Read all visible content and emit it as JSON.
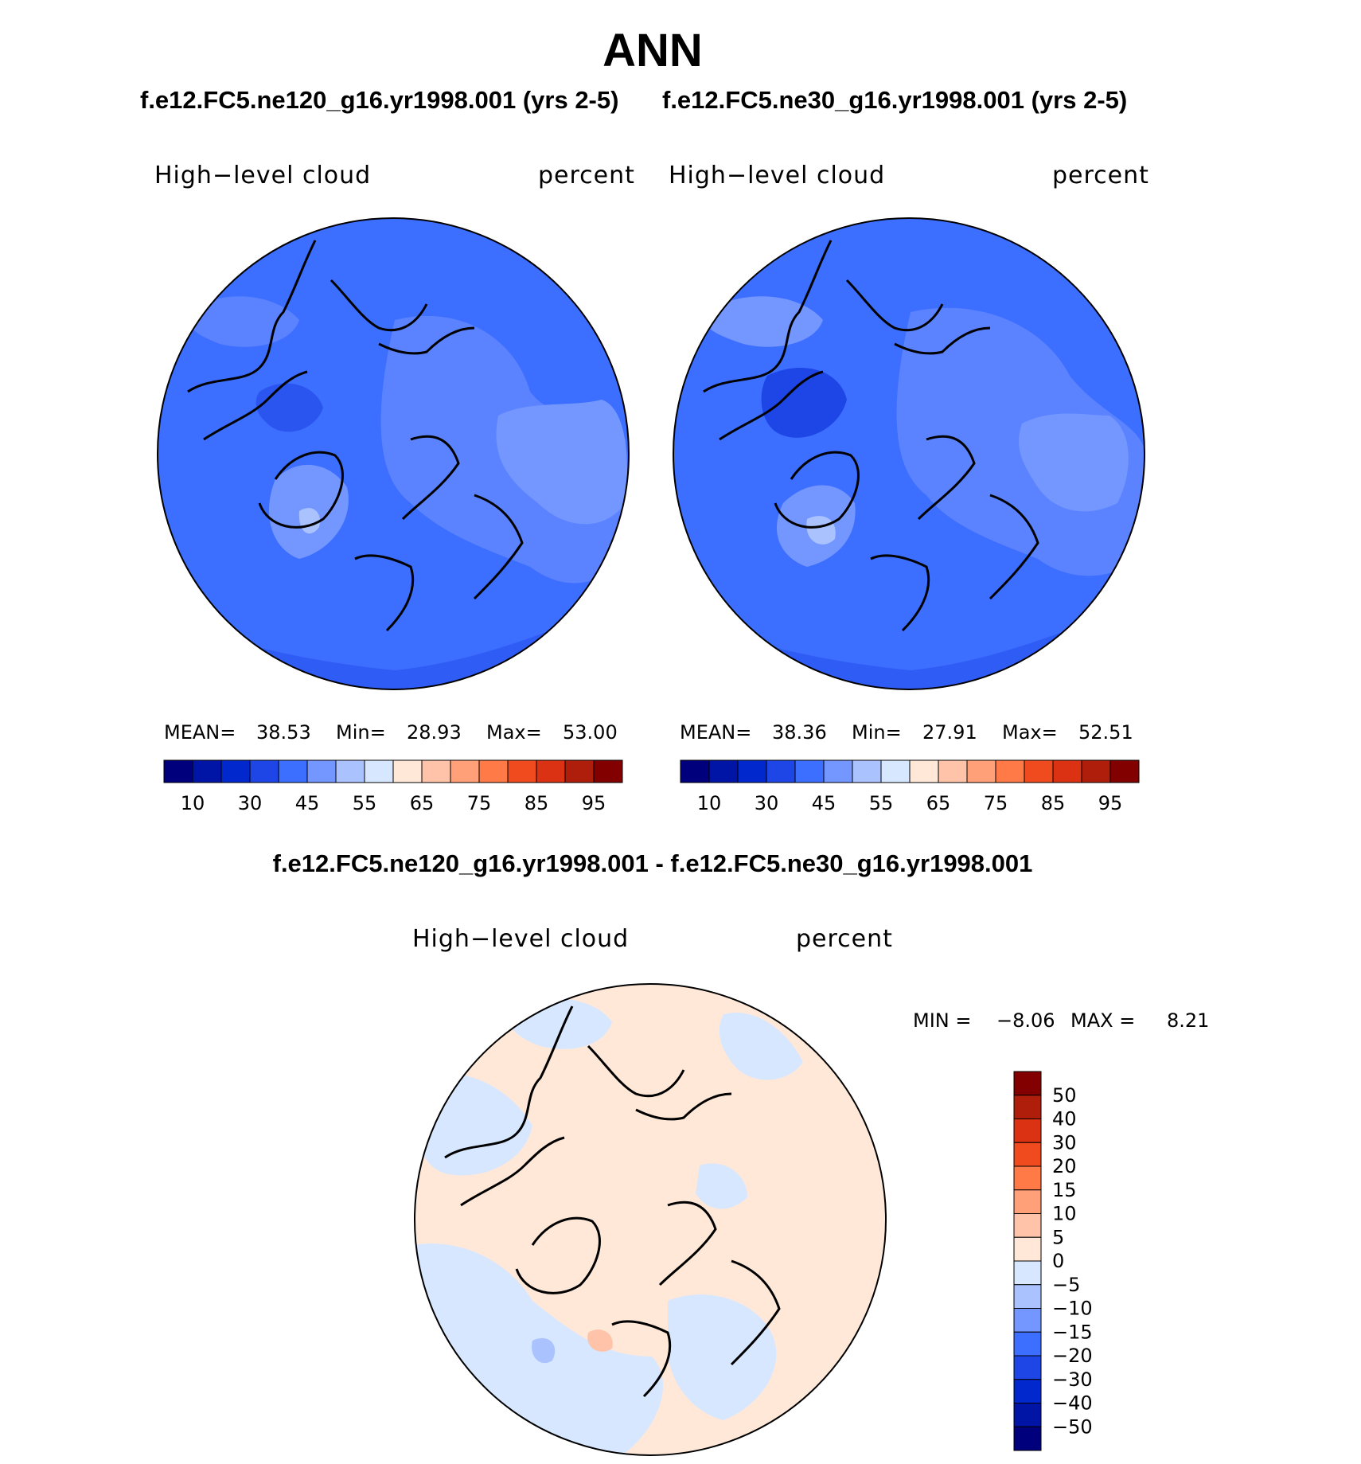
{
  "figure": {
    "title": "ANN",
    "case1_title": "f.e12.FC5.ne120_g16.yr1998.001 (yrs 2-5)",
    "case2_title": "f.e12.FC5.ne30_g16.yr1998.001 (yrs 2-5)",
    "diff_title": "f.e12.FC5.ne120_g16.yr1998.001 - f.e12.FC5.ne30_g16.yr1998.001"
  },
  "panels": [
    {
      "variable": "High−level cloud",
      "units": "percent",
      "stats": {
        "mean_label": "MEAN=",
        "mean": "38.53",
        "min_label": "Min=",
        "min": "28.93",
        "max_label": "Max=",
        "max": "53.00"
      }
    },
    {
      "variable": "High−level cloud",
      "units": "percent",
      "stats": {
        "mean_label": "MEAN=",
        "mean": "38.36",
        "min_label": "Min=",
        "min": "27.91",
        "max_label": "Max=",
        "max": "52.51"
      }
    },
    {
      "variable": "High−level cloud",
      "units": "percent",
      "stats": {
        "min_label": "MIN =",
        "min": "−8.06",
        "max_label": "MAX =",
        "max": "8.21"
      }
    }
  ],
  "chart_data": [
    {
      "type": "heatmap",
      "projection": "north-polar-stereographic",
      "colorbar": {
        "orientation": "horizontal",
        "colors": [
          "#00007d",
          "#0014a5",
          "#0028cd",
          "#1e46e6",
          "#3c6eff",
          "#7396ff",
          "#aac3ff",
          "#d7e7ff",
          "#ffe8d7",
          "#ffc3aa",
          "#ffa078",
          "#ff7a46",
          "#f04b1e",
          "#dc3214",
          "#af1e0a",
          "#820000"
        ],
        "tick_labels": [
          "10",
          "30",
          "45",
          "55",
          "65",
          "75",
          "85",
          "95"
        ]
      }
    },
    {
      "type": "heatmap",
      "projection": "north-polar-stereographic",
      "colorbar": {
        "orientation": "horizontal",
        "colors": [
          "#00007d",
          "#0014a5",
          "#0028cd",
          "#1e46e6",
          "#3c6eff",
          "#7396ff",
          "#aac3ff",
          "#d7e7ff",
          "#ffe8d7",
          "#ffc3aa",
          "#ffa078",
          "#ff7a46",
          "#f04b1e",
          "#dc3214",
          "#af1e0a",
          "#820000"
        ],
        "tick_labels": [
          "10",
          "30",
          "45",
          "55",
          "65",
          "75",
          "85",
          "95"
        ]
      }
    },
    {
      "type": "heatmap",
      "projection": "north-polar-stereographic",
      "colorbar": {
        "orientation": "vertical",
        "colors": [
          "#820000",
          "#af1e0a",
          "#dc3214",
          "#f04b1e",
          "#ff7a46",
          "#ffa078",
          "#ffc3aa",
          "#ffe8d7",
          "#d7e7ff",
          "#aac3ff",
          "#7396ff",
          "#3c6eff",
          "#1e46e6",
          "#0028cd",
          "#0014a5",
          "#00007d"
        ],
        "tick_labels": [
          "50",
          "40",
          "30",
          "20",
          "15",
          "10",
          "5",
          "0",
          "−5",
          "−10",
          "−15",
          "−20",
          "−30",
          "−40",
          "−50"
        ]
      }
    }
  ]
}
